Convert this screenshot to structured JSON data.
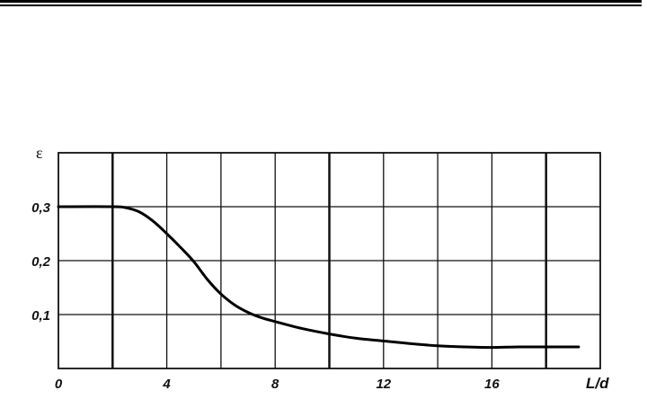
{
  "chart_data": {
    "type": "line",
    "title": "",
    "xlabel": "L/d",
    "ylabel": "ε",
    "xlim": [
      0,
      20
    ],
    "ylim": [
      0,
      0.4
    ],
    "grid": true,
    "x_major_lines": [
      2,
      10,
      18
    ],
    "xticks": [
      0,
      4,
      8,
      12,
      16
    ],
    "xtick_labels": [
      "0",
      "4",
      "8",
      "12",
      "16"
    ],
    "yticks": [
      0.1,
      0.2,
      0.3
    ],
    "ytick_labels": [
      "0,1",
      "0,2",
      "0,3"
    ],
    "series": [
      {
        "x": [
          0,
          2,
          2.5,
          3,
          3.5,
          4,
          4.5,
          5,
          5.5,
          6,
          6.5,
          7,
          7.5,
          8,
          9,
          10,
          11,
          12,
          13,
          14,
          15,
          16,
          17,
          18,
          19.2
        ],
        "y": [
          0.3,
          0.3,
          0.298,
          0.29,
          0.273,
          0.25,
          0.225,
          0.198,
          0.165,
          0.138,
          0.118,
          0.104,
          0.094,
          0.087,
          0.074,
          0.064,
          0.056,
          0.051,
          0.046,
          0.042,
          0.04,
          0.039,
          0.04,
          0.04,
          0.04
        ],
        "color": "#000000"
      }
    ]
  }
}
